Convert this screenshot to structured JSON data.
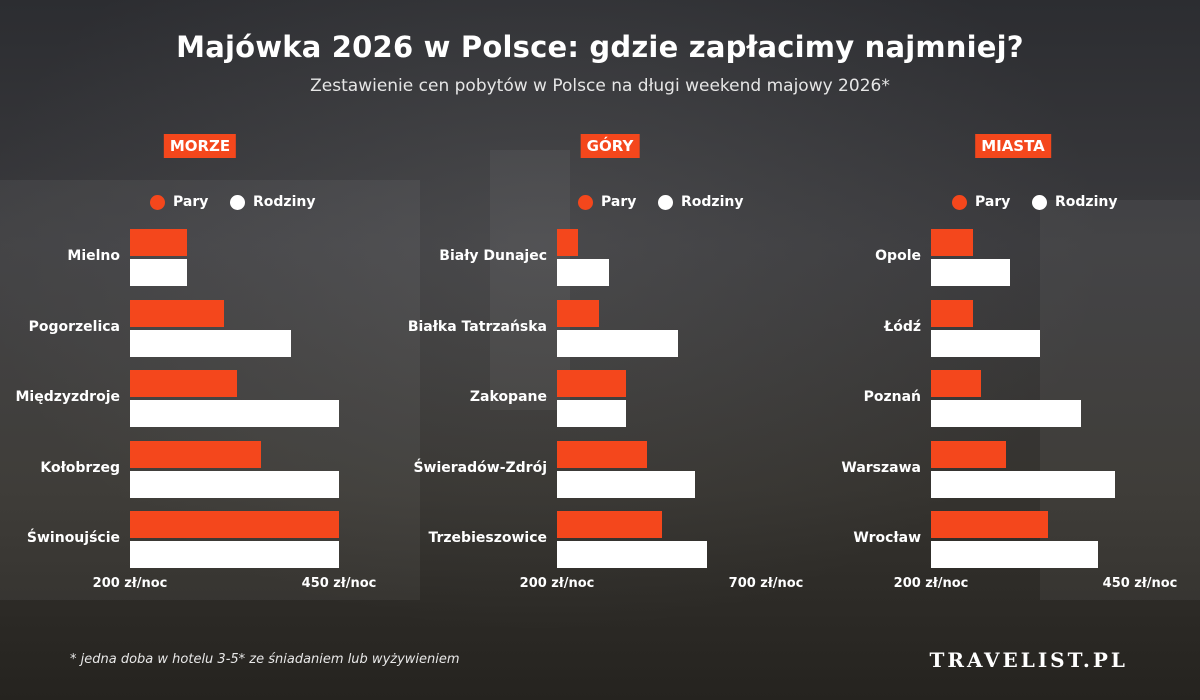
{
  "header": {
    "title": "Majówka 2026 w Polsce: gdzie zapłacimy najmniej?",
    "subtitle": "Zestawienie cen pobytów w Polsce na długi weekend majowy 2026*"
  },
  "legend": {
    "couples": "Pary",
    "families": "Rodziny"
  },
  "colors": {
    "couples": "#f4471c",
    "families": "#ffffff",
    "badge": "#f4471c"
  },
  "chart_data": [
    {
      "type": "bar",
      "title": "MORZE",
      "categories": [
        "Mielno",
        "Pogorzelica",
        "Międzyzdroje",
        "Kołobrzeg",
        "Świnoujście"
      ],
      "series": [
        {
          "name": "Pary",
          "values": [
            268,
            313,
            328,
            357,
            450
          ]
        },
        {
          "name": "Rodziny",
          "values": [
            268,
            393,
            450,
            450,
            450
          ]
        }
      ],
      "xlim": [
        200,
        450
      ],
      "xlabels": [
        "200 zł/noc",
        "450 zł/noc"
      ]
    },
    {
      "type": "bar",
      "title": "GÓRY",
      "categories": [
        "Biały Dunajec",
        "Białka Tatrzańska",
        "Zakopane",
        "Świeradów-Zdrój",
        "Trzebieszowice"
      ],
      "series": [
        {
          "name": "Pary",
          "values": [
            250,
            300,
            365,
            415,
            450
          ]
        },
        {
          "name": "Rodziny",
          "values": [
            325,
            490,
            365,
            530,
            560
          ]
        }
      ],
      "xlim": [
        200,
        700
      ],
      "xlabels": [
        "200 zł/noc",
        "700 zł/noc"
      ]
    },
    {
      "type": "bar",
      "title": "MIASTA",
      "categories": [
        "Opole",
        "Łódź",
        "Poznań",
        "Warszawa",
        "Wrocław"
      ],
      "series": [
        {
          "name": "Pary",
          "values": [
            250,
            250,
            260,
            290,
            340
          ]
        },
        {
          "name": "Rodziny",
          "values": [
            295,
            330,
            380,
            420,
            400
          ]
        }
      ],
      "xlim": [
        200,
        450
      ],
      "xlabels": [
        "200 zł/noc",
        "450 zł/noc"
      ]
    }
  ],
  "footer": {
    "footnote": "* jedna doba w hotelu 3-5* ze śniadaniem lub wyżywieniem",
    "brand": "TRAVELIST.PL"
  }
}
